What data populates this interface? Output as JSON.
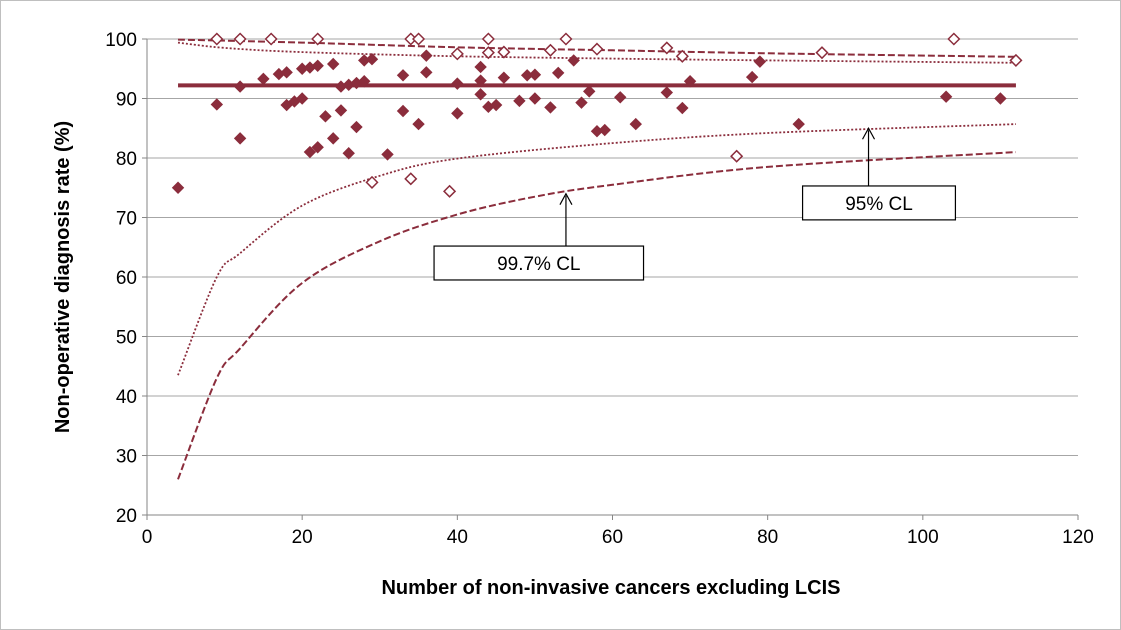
{
  "chart_data": {
    "type": "scatter",
    "xlabel": "Number of non-invasive cancers excluding LCIS",
    "ylabel": "Non-operative diagnosis rate (%)",
    "xlim": [
      0,
      120
    ],
    "ylim": [
      20,
      100
    ],
    "x_ticks": [
      0,
      20,
      40,
      60,
      80,
      100,
      120
    ],
    "y_ticks": [
      20,
      30,
      40,
      50,
      60,
      70,
      80,
      90,
      100
    ],
    "grid": "horizontal",
    "legend": "none",
    "colors": {
      "series": "#8b2d3c",
      "grid": "#a6a6a6"
    },
    "mean_line": {
      "y": 92.2
    },
    "series": [
      {
        "marker": "filled-diamond",
        "points": [
          [
            4,
            75
          ],
          [
            9,
            89
          ],
          [
            12,
            92
          ],
          [
            12,
            83.3
          ],
          [
            15,
            93.3
          ],
          [
            17,
            94.1
          ],
          [
            18,
            94.4
          ],
          [
            18,
            88.9
          ],
          [
            19,
            89.5
          ],
          [
            20,
            95
          ],
          [
            20,
            90
          ],
          [
            21,
            81
          ],
          [
            21,
            95.2
          ],
          [
            22,
            95.5
          ],
          [
            22,
            81.8
          ],
          [
            23,
            87
          ],
          [
            24,
            95.8
          ],
          [
            24,
            83.3
          ],
          [
            25,
            92
          ],
          [
            25,
            88
          ],
          [
            26,
            92.3
          ],
          [
            26,
            80.8
          ],
          [
            27,
            92.6
          ],
          [
            27,
            85.2
          ],
          [
            28,
            92.9
          ],
          [
            28,
            96.4
          ],
          [
            29,
            96.6
          ],
          [
            31,
            80.6
          ],
          [
            33,
            93.9
          ],
          [
            33,
            87.9
          ],
          [
            35,
            85.7
          ],
          [
            36,
            94.4
          ],
          [
            36,
            97.2
          ],
          [
            40,
            92.5
          ],
          [
            40,
            87.5
          ],
          [
            43,
            93
          ],
          [
            43,
            95.3
          ],
          [
            43,
            90.7
          ],
          [
            44,
            88.6
          ],
          [
            45,
            88.9
          ],
          [
            46,
            93.5
          ],
          [
            48,
            89.6
          ],
          [
            49,
            93.9
          ],
          [
            50,
            94
          ],
          [
            50,
            90
          ],
          [
            52,
            88.5
          ],
          [
            53,
            94.3
          ],
          [
            55,
            96.4
          ],
          [
            56,
            89.3
          ],
          [
            57,
            91.2
          ],
          [
            58,
            84.5
          ],
          [
            59,
            84.7
          ],
          [
            61,
            90.2
          ],
          [
            63,
            85.7
          ],
          [
            67,
            91
          ],
          [
            69,
            88.4
          ],
          [
            70,
            92.9
          ],
          [
            78,
            93.6
          ],
          [
            79,
            96.2
          ],
          [
            84,
            85.7
          ],
          [
            103,
            90.3
          ],
          [
            110,
            90
          ]
        ]
      },
      {
        "marker": "open-diamond",
        "points": [
          [
            9,
            100
          ],
          [
            12,
            100
          ],
          [
            16,
            100
          ],
          [
            22,
            100
          ],
          [
            29,
            75.9
          ],
          [
            34,
            100
          ],
          [
            34,
            76.5
          ],
          [
            35,
            100
          ],
          [
            39,
            74.4
          ],
          [
            40,
            97.5
          ],
          [
            44,
            100
          ],
          [
            44,
            97.7
          ],
          [
            46,
            97.8
          ],
          [
            52,
            98.1
          ],
          [
            54,
            100
          ],
          [
            58,
            98.3
          ],
          [
            67,
            98.5
          ],
          [
            69,
            97.1
          ],
          [
            76,
            80.3
          ],
          [
            87,
            97.7
          ],
          [
            104,
            100
          ],
          [
            112,
            96.4
          ]
        ]
      }
    ],
    "control_limits": {
      "cl95_upper": [
        [
          4,
          99.4
        ],
        [
          10,
          98.5
        ],
        [
          20,
          97.8
        ],
        [
          40,
          97.1
        ],
        [
          60,
          96.7
        ],
        [
          80,
          96.4
        ],
        [
          112,
          96.0
        ]
      ],
      "cl95_lower": [
        [
          4,
          43.5
        ],
        [
          9,
          60
        ],
        [
          12,
          64
        ],
        [
          20,
          72
        ],
        [
          30,
          77
        ],
        [
          40,
          79.9
        ],
        [
          60,
          82.5
        ],
        [
          80,
          84.2
        ],
        [
          112,
          85.7
        ]
      ],
      "cl997_upper": [
        [
          4,
          99.9
        ],
        [
          20,
          99.4
        ],
        [
          40,
          98.6
        ],
        [
          60,
          98.1
        ],
        [
          80,
          97.6
        ],
        [
          112,
          97.0
        ]
      ],
      "cl997_lower": [
        [
          4,
          26
        ],
        [
          9,
          43
        ],
        [
          12,
          48
        ],
        [
          20,
          59
        ],
        [
          30,
          66
        ],
        [
          40,
          70.5
        ],
        [
          50,
          73.5
        ],
        [
          60,
          75.5
        ],
        [
          80,
          78.5
        ],
        [
          112,
          81
        ]
      ]
    },
    "annotations": [
      {
        "id": "cl997",
        "text": "99.7% CL",
        "box": {
          "x0": 37,
          "x1": 64,
          "y0": 65.2,
          "y1": 59.5
        },
        "arrow_to": [
          54,
          74
        ]
      },
      {
        "id": "cl95",
        "text": "95% CL",
        "box": {
          "x0": 84.5,
          "x1": 104.2,
          "y0": 75.3,
          "y1": 69.6
        },
        "arrow_to": [
          93,
          85
        ]
      }
    ]
  }
}
